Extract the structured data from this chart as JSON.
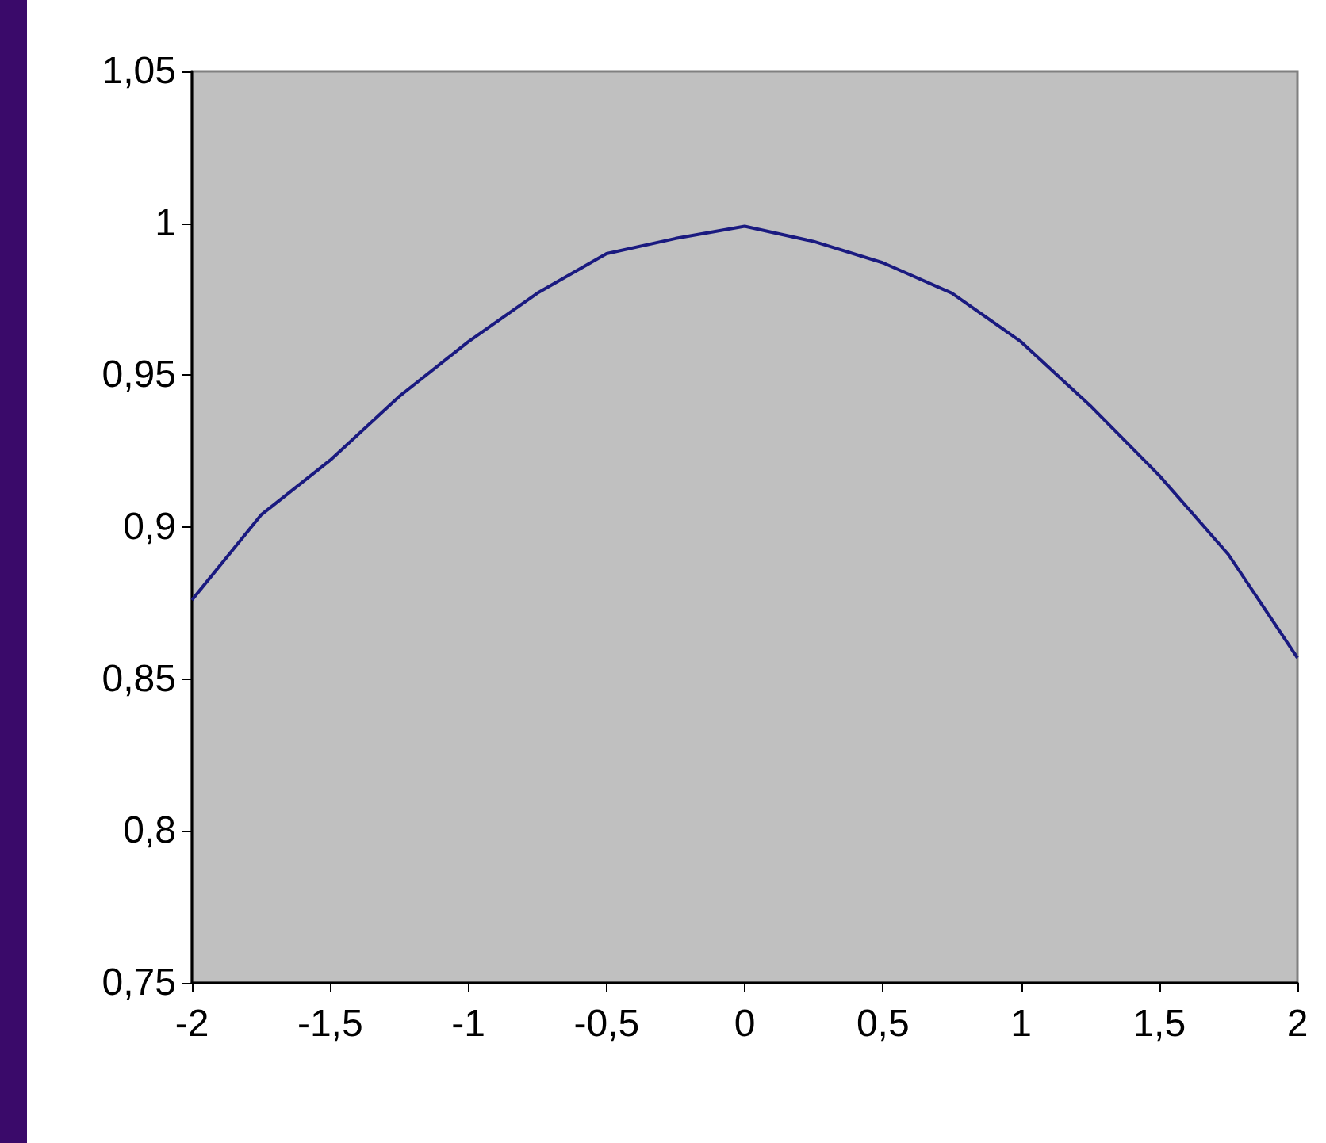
{
  "chart_data": {
    "type": "line",
    "x": [
      -2,
      -1.75,
      -1.5,
      -1.25,
      -1,
      -0.75,
      -0.5,
      -0.25,
      0,
      0.25,
      0.5,
      0.75,
      1,
      1.25,
      1.5,
      1.75,
      2
    ],
    "series": [
      {
        "color": "#1a1a80",
        "values": [
          0.876,
          0.904,
          0.922,
          0.943,
          0.961,
          0.977,
          0.99,
          0.995,
          0.999,
          0.994,
          0.987,
          0.977,
          0.961,
          0.94,
          0.917,
          0.891,
          0.857
        ]
      }
    ],
    "xlim": [
      -2,
      2
    ],
    "xticks": [
      -2,
      {
        "value": -1.5,
        "label": "-1,5"
      },
      -1,
      {
        "value": -0.5,
        "label": "-0,5"
      },
      0,
      {
        "value": 0.5,
        "label": "0,5"
      },
      1,
      {
        "value": 1.5,
        "label": "1,5"
      },
      2
    ],
    "ylim": [
      0.75,
      1.05
    ],
    "yticks": [
      {
        "value": 0.75,
        "label": "0,75"
      },
      {
        "value": 0.8,
        "label": "0,8"
      },
      {
        "value": 0.85,
        "label": "0,85"
      },
      {
        "value": 0.9,
        "label": "0,9"
      },
      {
        "value": 0.95,
        "label": "0,95"
      },
      {
        "value": 1,
        "label": "1"
      },
      {
        "value": 1.05,
        "label": "1,05"
      }
    ],
    "grid": false,
    "marker": "none",
    "line_style": "solid"
  }
}
